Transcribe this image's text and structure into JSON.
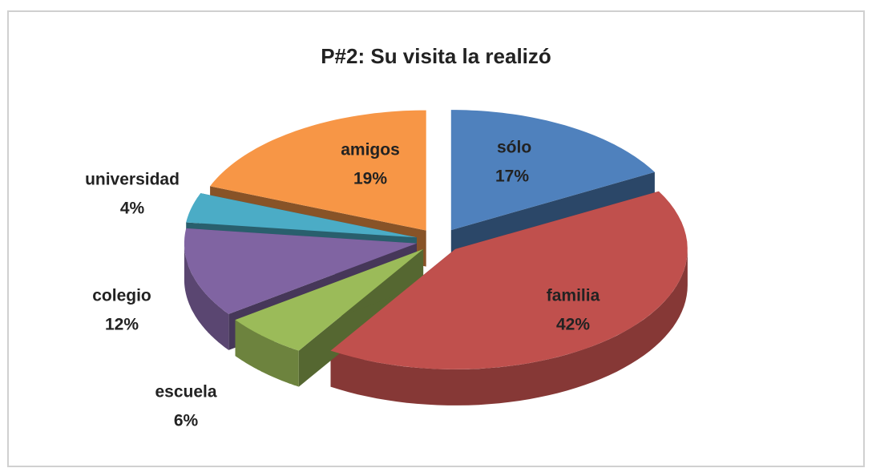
{
  "chart_data": {
    "type": "pie",
    "title": "P#2: Su visita la realizó",
    "categories": [
      "sólo",
      "familia",
      "escuela",
      "colegio",
      "universidad",
      "amigos"
    ],
    "values": [
      17,
      42,
      6,
      12,
      4,
      19
    ],
    "value_labels": [
      "17%",
      "42%",
      "6%",
      "12%",
      "4%",
      "19%"
    ],
    "colors": [
      "#4f81bd",
      "#c0504d",
      "#9bbb59",
      "#8064a2",
      "#4bacc6",
      "#f79646"
    ]
  }
}
